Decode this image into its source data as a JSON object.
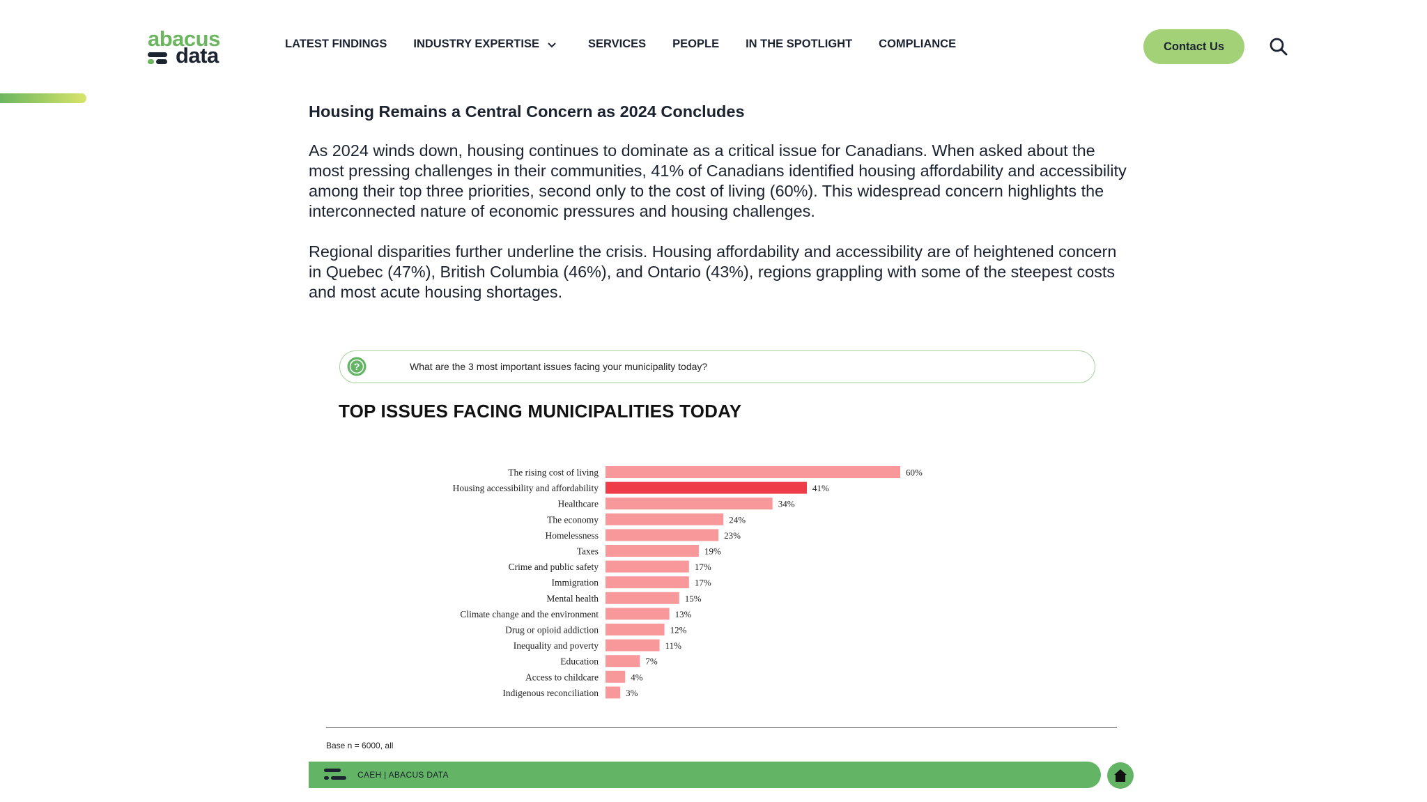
{
  "header": {
    "logo_top": "abacus",
    "logo_bottom": "data",
    "nav": [
      {
        "label": "LATEST FINDINGS"
      },
      {
        "label": "INDUSTRY EXPERTISE",
        "has_dropdown": true
      },
      {
        "label": "SERVICES"
      },
      {
        "label": "PEOPLE"
      },
      {
        "label": "IN THE SPOTLIGHT"
      },
      {
        "label": "COMPLIANCE"
      }
    ],
    "contact_label": "Contact Us",
    "search_icon": "search-icon"
  },
  "article": {
    "heading": "Housing Remains a Central Concern as 2024 Concludes",
    "paragraph1": "As 2024 winds down, housing continues to dominate as a critical issue for Canadians. When asked about the most pressing challenges in their communities, 41% of Canadians identified housing affordability and accessibility among their top three priorities, second only to the cost of living (60%). This widespread concern highlights the interconnected nature of economic pressures and housing challenges.",
    "paragraph2": "Regional disparities further underline the crisis. Housing affordability and accessibility are of heightened concern in Quebec (47%), British Columbia (46%), and Ontario (43%), regions grappling with some of the steepest costs and most acute housing shortages."
  },
  "infographic": {
    "question": "What are the 3 most important issues facing your municipality today?",
    "title": "TOP ISSUES FACING MUNICIPALITIES TODAY",
    "base_note": "Base n = 6000, all",
    "footer_text": "CAEH  |  ABACUS DATA",
    "home_icon": "home-icon"
  },
  "colors": {
    "brand_green": "#64b466",
    "brand_light_green": "#a3d178",
    "bar_default": "#f9989b",
    "bar_highlight": "#ee3d48"
  },
  "chart_data": {
    "type": "bar",
    "orientation": "horizontal",
    "title": "TOP ISSUES FACING MUNICIPALITIES TODAY",
    "categories": [
      "The rising cost of living",
      "Housing accessibility and affordability",
      "Healthcare",
      "The economy",
      "Homelessness",
      "Taxes",
      "Crime and public safety",
      "Immigration",
      "Mental health",
      "Climate change and the environment",
      "Drug or opioid addiction",
      "Inequality and poverty",
      "Education",
      "Access to childcare",
      "Indigenous reconciliation"
    ],
    "values": [
      60,
      41,
      34,
      24,
      23,
      19,
      17,
      17,
      15,
      13,
      12,
      11,
      7,
      4,
      3
    ],
    "value_labels": [
      "60%",
      "41%",
      "34%",
      "24%",
      "23%",
      "19%",
      "17%",
      "17%",
      "15%",
      "13%",
      "12%",
      "11%",
      "7%",
      "4%",
      "3%"
    ],
    "highlight_index": 1,
    "unit": "%",
    "grid": false,
    "legend": "none"
  }
}
